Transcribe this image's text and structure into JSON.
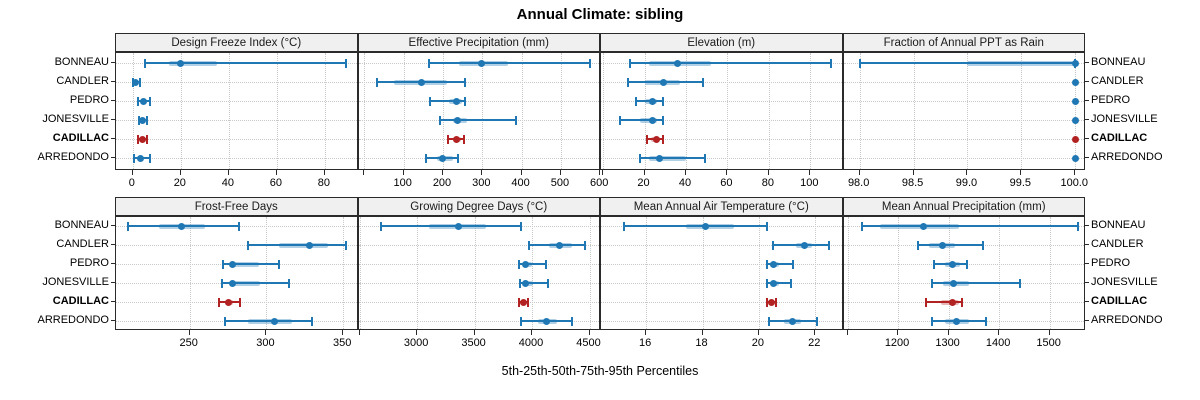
{
  "title": "Annual Climate: sibling",
  "xlabel": "5th-25th-50th-75th-95th Percentiles",
  "colors": {
    "series_blue": "#1f78b4",
    "series_blue_band": "rgba(31,120,180,0.35)",
    "highlight_red": "#b22222",
    "highlight_red_band": "rgba(178,34,34,0.32)",
    "grid": "#c9c9c9",
    "panel_border": "#2b2b2b",
    "strip_background": "#f0f0f0"
  },
  "chart_data": {
    "type": "dotplot-percentiles",
    "title": "Annual Climate: sibling",
    "xlabel": "5th-25th-50th-75th-95th Percentiles",
    "percentile_labels": [
      "5th",
      "25th",
      "50th",
      "75th",
      "95th"
    ],
    "sites": [
      "BONNEAU",
      "CANDLER",
      "PEDRO",
      "JONESVILLE",
      "CADILLAC",
      "ARREDONDO"
    ],
    "highlighted_site": "CADILLAC",
    "legend_position": "none",
    "grid": "dotted",
    "panels": [
      {
        "title": "Design Freeze Index (°C)",
        "row": 0,
        "col": 0,
        "xlim": [
          -7,
          94
        ],
        "tick_values": [
          0,
          20,
          40,
          60,
          80
        ],
        "tick_labels": [
          "0",
          "20",
          "40",
          "60",
          "80"
        ],
        "series": [
          {
            "site": "BONNEAU",
            "percentiles": [
              5,
              15,
              20,
              35,
              89
            ]
          },
          {
            "site": "CANDLER",
            "percentiles": [
              0,
              0.5,
              1,
              2,
              3
            ]
          },
          {
            "site": "PEDRO",
            "percentiles": [
              2,
              4,
              4.6,
              5.5,
              7
            ]
          },
          {
            "site": "JONESVILLE",
            "percentiles": [
              2.5,
              3.5,
              4,
              4.8,
              6
            ]
          },
          {
            "site": "CADILLAC",
            "percentiles": [
              2,
              3.5,
              4.2,
              5,
              6
            ]
          },
          {
            "site": "ARREDONDO",
            "percentiles": [
              0.5,
              2.5,
              3,
              4,
              7
            ]
          }
        ]
      },
      {
        "title": "Effective Precipitation (mm)",
        "row": 0,
        "col": 1,
        "xlim": [
          -15,
          602
        ],
        "tick_values": [
          0,
          100,
          200,
          300,
          400,
          500,
          600
        ],
        "tick_labels": [
          "",
          "100",
          "200",
          "300",
          "400",
          "500",
          "600"
        ],
        "series": [
          {
            "site": "BONNEAU",
            "percentiles": [
              165,
              240,
              298,
              365,
              573
            ]
          },
          {
            "site": "CANDLER",
            "percentiles": [
              32,
              75,
              145,
              210,
              257
            ]
          },
          {
            "site": "PEDRO",
            "percentiles": [
              168,
              215,
              235,
              248,
              255
            ]
          },
          {
            "site": "JONESVILLE",
            "percentiles": [
              192,
              225,
              238,
              260,
              386
            ]
          },
          {
            "site": "CADILLAC",
            "percentiles": [
              212,
              228,
              235,
              245,
              253
            ]
          },
          {
            "site": "ARREDONDO",
            "percentiles": [
              157,
              185,
              198,
              225,
              238
            ]
          }
        ]
      },
      {
        "title": "Elevation (m)",
        "row": 0,
        "col": 2,
        "xlim": [
          -1,
          116
        ],
        "tick_values": [
          0,
          20,
          40,
          60,
          80,
          100
        ],
        "tick_labels": [
          "",
          "20",
          "40",
          "60",
          "80",
          "100"
        ],
        "series": [
          {
            "site": "BONNEAU",
            "percentiles": [
              13,
              22,
              36,
              52,
              110
            ]
          },
          {
            "site": "CANDLER",
            "percentiles": [
              12,
              20,
              29,
              37,
              48
            ]
          },
          {
            "site": "PEDRO",
            "percentiles": [
              16,
              20,
              24,
              26,
              29
            ]
          },
          {
            "site": "JONESVILLE",
            "percentiles": [
              8,
              18,
              24,
              26,
              29
            ]
          },
          {
            "site": "CADILLAC",
            "percentiles": [
              21,
              23,
              26,
              27,
              29
            ]
          },
          {
            "site": "ARREDONDO",
            "percentiles": [
              18,
              22,
              27,
              40,
              49
            ]
          }
        ]
      },
      {
        "title": "Fraction of Annual PPT as Rain",
        "row": 0,
        "col": 3,
        "xlim": [
          97.85,
          100.1
        ],
        "tick_values": [
          98.0,
          98.5,
          99.0,
          99.5,
          100.0
        ],
        "tick_labels": [
          "98.0",
          "98.5",
          "99.0",
          "99.5",
          "100.0"
        ],
        "series": [
          {
            "site": "BONNEAU",
            "percentiles": [
              98.0,
              99.0,
              100.0,
              100.0,
              100.0
            ]
          },
          {
            "site": "CANDLER",
            "percentiles": [
              100.0,
              100.0,
              100.0,
              100.0,
              100.0
            ]
          },
          {
            "site": "PEDRO",
            "percentiles": [
              100.0,
              100.0,
              100.0,
              100.0,
              100.0
            ]
          },
          {
            "site": "JONESVILLE",
            "percentiles": [
              100.0,
              100.0,
              100.0,
              100.0,
              100.0
            ]
          },
          {
            "site": "CADILLAC",
            "percentiles": [
              100.0,
              100.0,
              100.0,
              100.0,
              100.0
            ]
          },
          {
            "site": "ARREDONDO",
            "percentiles": [
              100.0,
              100.0,
              100.0,
              100.0,
              100.0
            ]
          }
        ]
      },
      {
        "title": "Frost-Free Days",
        "row": 1,
        "col": 0,
        "xlim": [
          202,
          360
        ],
        "tick_values": [
          250,
          300,
          350
        ],
        "tick_labels": [
          "250",
          "300",
          "350"
        ],
        "series": [
          {
            "site": "BONNEAU",
            "percentiles": [
              210,
              230,
              245,
              260,
              282
            ]
          },
          {
            "site": "CANDLER",
            "percentiles": [
              288,
              308,
              328,
              340,
              352
            ]
          },
          {
            "site": "PEDRO",
            "percentiles": [
              272,
              276,
              278,
              295,
              308
            ]
          },
          {
            "site": "JONESVILLE",
            "percentiles": [
              271,
              276,
              278,
              296,
              315
            ]
          },
          {
            "site": "CADILLAC",
            "percentiles": [
              269,
              273,
              275,
              278,
              283
            ]
          },
          {
            "site": "ARREDONDO",
            "percentiles": [
              273,
              288,
              305,
              317,
              330
            ]
          }
        ]
      },
      {
        "title": "Growing Degree Days (°C)",
        "row": 1,
        "col": 1,
        "xlim": [
          2490,
          4600
        ],
        "tick_values": [
          2500,
          3000,
          3500,
          4000,
          4500
        ],
        "tick_labels": [
          "",
          "3000",
          "3500",
          "4000",
          "4500"
        ],
        "series": [
          {
            "site": "BONNEAU",
            "percentiles": [
              2690,
              3100,
              3360,
              3600,
              3900
            ]
          },
          {
            "site": "CANDLER",
            "percentiles": [
              3975,
              4150,
              4240,
              4350,
              4460
            ]
          },
          {
            "site": "PEDRO",
            "percentiles": [
              3890,
              3920,
              3945,
              4000,
              4120
            ]
          },
          {
            "site": "JONESVILLE",
            "percentiles": [
              3895,
              3925,
              3945,
              4010,
              4140
            ]
          },
          {
            "site": "CADILLAC",
            "percentiles": [
              3885,
              3910,
              3925,
              3945,
              3965
            ]
          },
          {
            "site": "ARREDONDO",
            "percentiles": [
              3905,
              4050,
              4130,
              4220,
              4350
            ]
          }
        ]
      },
      {
        "title": "Mean Annual Air Temperature (°C)",
        "row": 1,
        "col": 2,
        "xlim": [
          14.4,
          23
        ],
        "tick_values": [
          16,
          18,
          20,
          22
        ],
        "tick_labels": [
          "16",
          "18",
          "20",
          "22"
        ],
        "series": [
          {
            "site": "BONNEAU",
            "percentiles": [
              15.2,
              17.4,
              18.1,
              19.1,
              20.3
            ]
          },
          {
            "site": "CANDLER",
            "percentiles": [
              20.5,
              21.3,
              21.6,
              21.9,
              22.5
            ]
          },
          {
            "site": "PEDRO",
            "percentiles": [
              20.3,
              20.4,
              20.5,
              20.7,
              21.2
            ]
          },
          {
            "site": "JONESVILLE",
            "percentiles": [
              20.3,
              20.4,
              20.5,
              20.7,
              21.15
            ]
          },
          {
            "site": "CADILLAC",
            "percentiles": [
              20.3,
              20.38,
              20.45,
              20.5,
              20.6
            ]
          },
          {
            "site": "ARREDONDO",
            "percentiles": [
              20.35,
              20.9,
              21.2,
              21.5,
              22.05
            ]
          }
        ]
      },
      {
        "title": "Mean Annual Precipitation (mm)",
        "row": 1,
        "col": 3,
        "xlim": [
          1092,
          1572
        ],
        "tick_values": [
          1100,
          1200,
          1300,
          1400,
          1500
        ],
        "tick_labels": [
          "",
          "1200",
          "1300",
          "1400",
          "1500"
        ],
        "series": [
          {
            "site": "BONNEAU",
            "percentiles": [
              1128,
              1165,
              1250,
              1320,
              1556
            ]
          },
          {
            "site": "CANDLER",
            "percentiles": [
              1240,
              1262,
              1287,
              1312,
              1368
            ]
          },
          {
            "site": "PEDRO",
            "percentiles": [
              1272,
              1292,
              1308,
              1322,
              1336
            ]
          },
          {
            "site": "JONESVILLE",
            "percentiles": [
              1268,
              1288,
              1310,
              1340,
              1442
            ]
          },
          {
            "site": "CADILLAC",
            "percentiles": [
              1255,
              1285,
              1307,
              1320,
              1327
            ]
          },
          {
            "site": "ARREDONDO",
            "percentiles": [
              1268,
              1292,
              1315,
              1340,
              1375
            ]
          }
        ]
      }
    ]
  }
}
